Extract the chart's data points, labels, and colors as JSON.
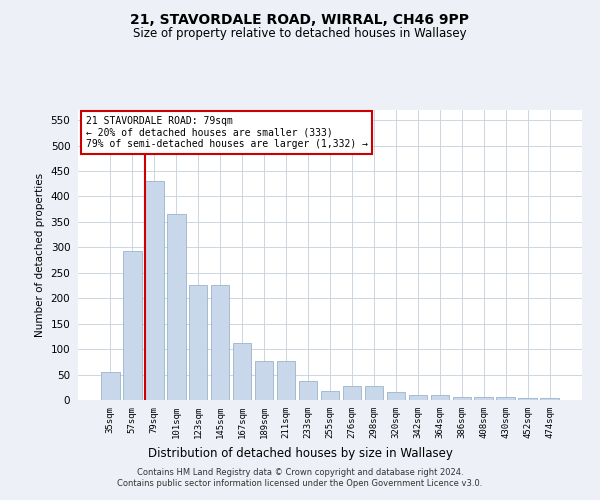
{
  "title1": "21, STAVORDALE ROAD, WIRRAL, CH46 9PP",
  "title2": "Size of property relative to detached houses in Wallasey",
  "xlabel": "Distribution of detached houses by size in Wallasey",
  "ylabel": "Number of detached properties",
  "categories": [
    "35sqm",
    "57sqm",
    "79sqm",
    "101sqm",
    "123sqm",
    "145sqm",
    "167sqm",
    "189sqm",
    "211sqm",
    "233sqm",
    "255sqm",
    "276sqm",
    "298sqm",
    "320sqm",
    "342sqm",
    "364sqm",
    "386sqm",
    "408sqm",
    "430sqm",
    "452sqm",
    "474sqm"
  ],
  "values": [
    55,
    293,
    430,
    365,
    227,
    227,
    113,
    77,
    77,
    38,
    18,
    27,
    27,
    15,
    9,
    9,
    6,
    5,
    5,
    4,
    4
  ],
  "bar_color": "#c8d8ea",
  "bar_edge_color": "#9ab4cc",
  "highlight_bar_index": 2,
  "highlight_line_color": "#cc0000",
  "annotation_line1": "21 STAVORDALE ROAD: 79sqm",
  "annotation_line2": "← 20% of detached houses are smaller (333)",
  "annotation_line3": "79% of semi-detached houses are larger (1,332) →",
  "footer_line1": "Contains HM Land Registry data © Crown copyright and database right 2024.",
  "footer_line2": "Contains public sector information licensed under the Open Government Licence v3.0.",
  "ylim_max": 570,
  "yticks": [
    0,
    50,
    100,
    150,
    200,
    250,
    300,
    350,
    400,
    450,
    500,
    550
  ],
  "bg_color": "#edf1f7",
  "plot_bg_color": "#ffffff",
  "grid_color": "#c5cfdb"
}
